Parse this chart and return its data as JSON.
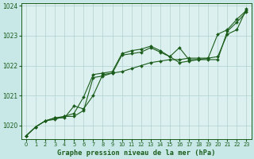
{
  "title": "Graphe pression niveau de la mer (hPa)",
  "bg_color": "#c8e8e8",
  "plot_bg_color": "#ddf0f0",
  "line_color": "#1a5c1a",
  "grid_color": "#b0d0d0",
  "xlim": [
    -0.5,
    23.5
  ],
  "ylim": [
    1019.55,
    1024.1
  ],
  "yticks": [
    1020,
    1021,
    1022,
    1023,
    1024
  ],
  "xticks": [
    0,
    1,
    2,
    3,
    4,
    5,
    6,
    7,
    8,
    9,
    10,
    11,
    12,
    13,
    14,
    15,
    16,
    17,
    18,
    19,
    20,
    21,
    22,
    23
  ],
  "series": [
    [
      1019.65,
      1019.95,
      1020.15,
      1020.25,
      1020.25,
      1020.65,
      1020.55,
      1021.0,
      1021.7,
      1021.75,
      1021.8,
      1021.9,
      1022.0,
      1022.1,
      1022.15,
      1022.2,
      1022.2,
      1022.25,
      1022.25,
      1022.25,
      1023.05,
      1023.2,
      1023.55,
      1023.85
    ],
    [
      1019.65,
      1019.95,
      1020.15,
      1020.2,
      1020.3,
      1020.4,
      1020.95,
      1021.7,
      1021.75,
      1021.8,
      1022.4,
      1022.5,
      1022.55,
      1022.65,
      1022.5,
      1022.3,
      1022.1,
      1022.15,
      1022.2,
      1022.2,
      1022.2,
      1023.15,
      1023.45,
      1023.8
    ],
    [
      1019.65,
      1019.95,
      1020.15,
      1020.25,
      1020.3,
      1020.3,
      1020.5,
      1021.6,
      1021.65,
      1021.75,
      1022.35,
      1022.4,
      1022.45,
      1022.6,
      1022.45,
      1022.3,
      1022.6,
      1022.2,
      1022.2,
      1022.25,
      1022.3,
      1023.05,
      1023.2,
      1023.9
    ]
  ]
}
